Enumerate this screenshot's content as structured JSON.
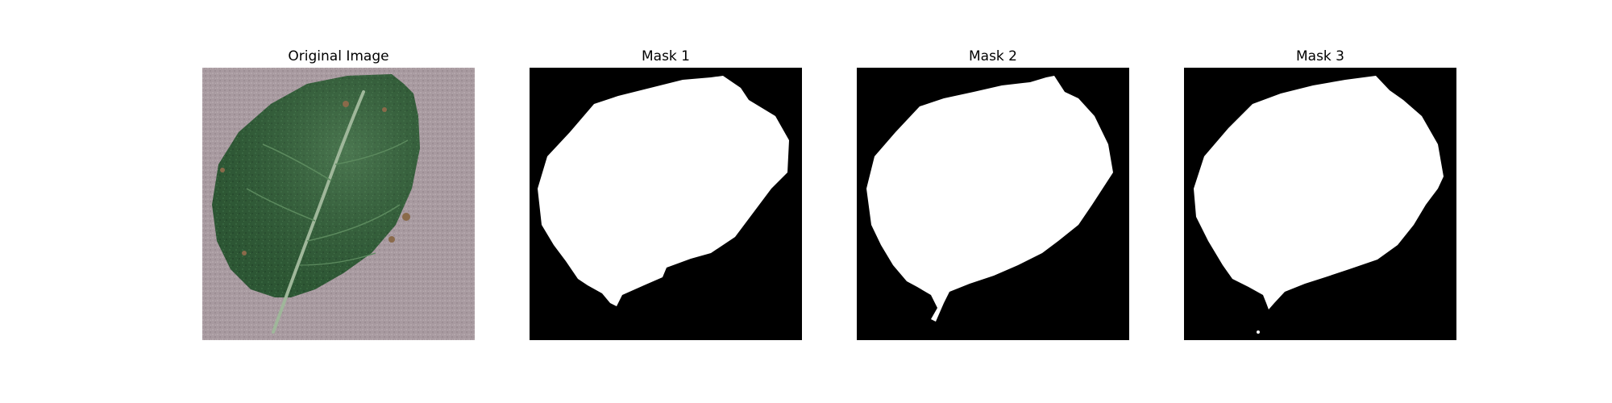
{
  "figure": {
    "panels": [
      {
        "title": "Original Image",
        "kind": "photo"
      },
      {
        "title": "Mask 1",
        "kind": "mask"
      },
      {
        "title": "Mask 2",
        "kind": "mask"
      },
      {
        "title": "Mask 3",
        "kind": "mask"
      }
    ]
  },
  "colors": {
    "background": "#ffffff",
    "photo_background": "#a89aa0",
    "leaf": "#2f5a36",
    "leaf_highlight": "#4a7a4e",
    "vein": "#9fb79a",
    "spot": "#8a6a4a",
    "mask_background": "#000000",
    "mask_foreground": "#ffffff"
  }
}
